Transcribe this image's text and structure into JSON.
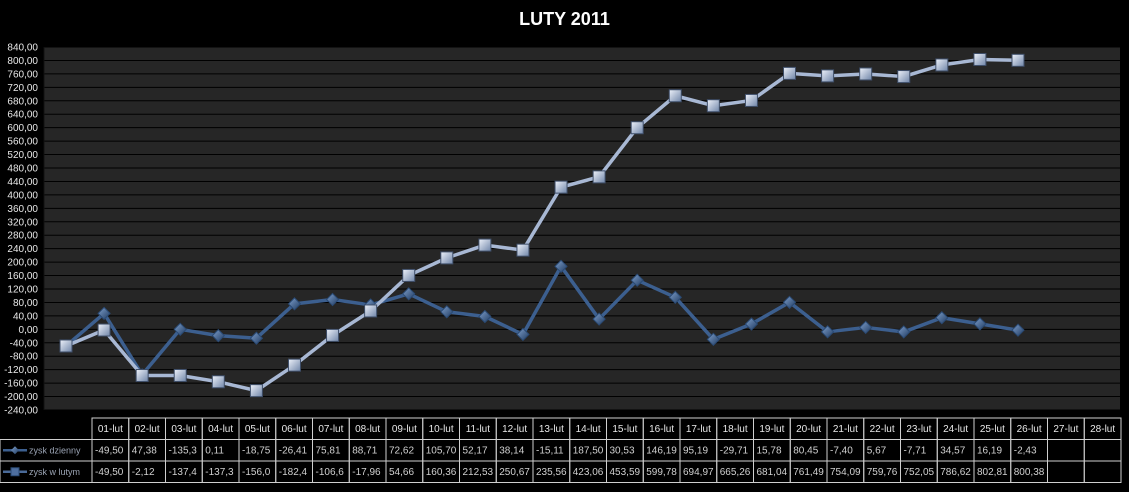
{
  "chart_data": {
    "type": "line",
    "title": "LUTY 2011",
    "categories": [
      "01-lut",
      "02-lut",
      "03-lut",
      "04-lut",
      "05-lut",
      "06-lut",
      "07-lut",
      "08-lut",
      "09-lut",
      "10-lut",
      "11-lut",
      "12-lut",
      "13-lut",
      "14-lut",
      "15-lut",
      "16-lut",
      "17-lut",
      "18-lut",
      "19-lut",
      "20-lut",
      "21-lut",
      "22-lut",
      "23-lut",
      "24-lut",
      "25-lut",
      "26-lut",
      "27-lut",
      "28-lut"
    ],
    "series": [
      {
        "name": "zysk dzienny",
        "color": "#3c5f8f",
        "values": [
          -49.5,
          47.38,
          -135.3,
          0.11,
          -18.75,
          -26.41,
          75.81,
          88.71,
          72.62,
          105.7,
          52.17,
          38.14,
          -15.11,
          187.5,
          30.53,
          146.19,
          95.19,
          -29.71,
          15.78,
          80.45,
          -7.4,
          5.67,
          -7.71,
          34.57,
          16.19,
          -2.43,
          null,
          null
        ],
        "labels": [
          "-49,50",
          "47,38",
          "-135,3",
          "0,11",
          "-18,75",
          "-26,41",
          "75,81",
          "88,71",
          "72,62",
          "105,70",
          "52,17",
          "38,14",
          "-15,11",
          "187,50",
          "30,53",
          "146,19",
          "95,19",
          "-29,71",
          "15,78",
          "80,45",
          "-7,40",
          "5,67",
          "-7,71",
          "34,57",
          "16,19",
          "-2,43",
          "",
          ""
        ]
      },
      {
        "name": "zysk w lutym",
        "color": "#a8b8d4",
        "values": [
          -49.5,
          -2.12,
          -137.4,
          -137.3,
          -156.0,
          -182.4,
          -106.6,
          -17.96,
          54.66,
          160.36,
          212.53,
          250.67,
          235.56,
          423.06,
          453.59,
          599.78,
          694.97,
          665.26,
          681.04,
          761.49,
          754.09,
          759.76,
          752.05,
          786.62,
          802.81,
          800.38,
          null,
          null
        ],
        "labels": [
          "-49,50",
          "-2,12",
          "-137,4",
          "-137,3",
          "-156,0",
          "-182,4",
          "-106,6",
          "-17,96",
          "54,66",
          "160,36",
          "212,53",
          "250,67",
          "235,56",
          "423,06",
          "453,59",
          "599,78",
          "694,97",
          "665,26",
          "681,04",
          "761,49",
          "754,09",
          "759,76",
          "752,05",
          "786,62",
          "802,81",
          "800,38",
          "",
          ""
        ]
      }
    ],
    "ylim": [
      -240,
      840
    ],
    "ytick_step": 40,
    "yticks": [
      "840,00",
      "800,00",
      "760,00",
      "720,00",
      "680,00",
      "640,00",
      "600,00",
      "560,00",
      "520,00",
      "480,00",
      "440,00",
      "400,00",
      "360,00",
      "320,00",
      "280,00",
      "240,00",
      "200,00",
      "160,00",
      "120,00",
      "80,00",
      "40,00",
      "0,00",
      "-40,00",
      "-80,00",
      "-120,00",
      "-160,00",
      "-200,00",
      "-240,00"
    ],
    "grid": true,
    "legend": "data-table",
    "plot_background": "#262626",
    "grid_color": "#000000"
  }
}
